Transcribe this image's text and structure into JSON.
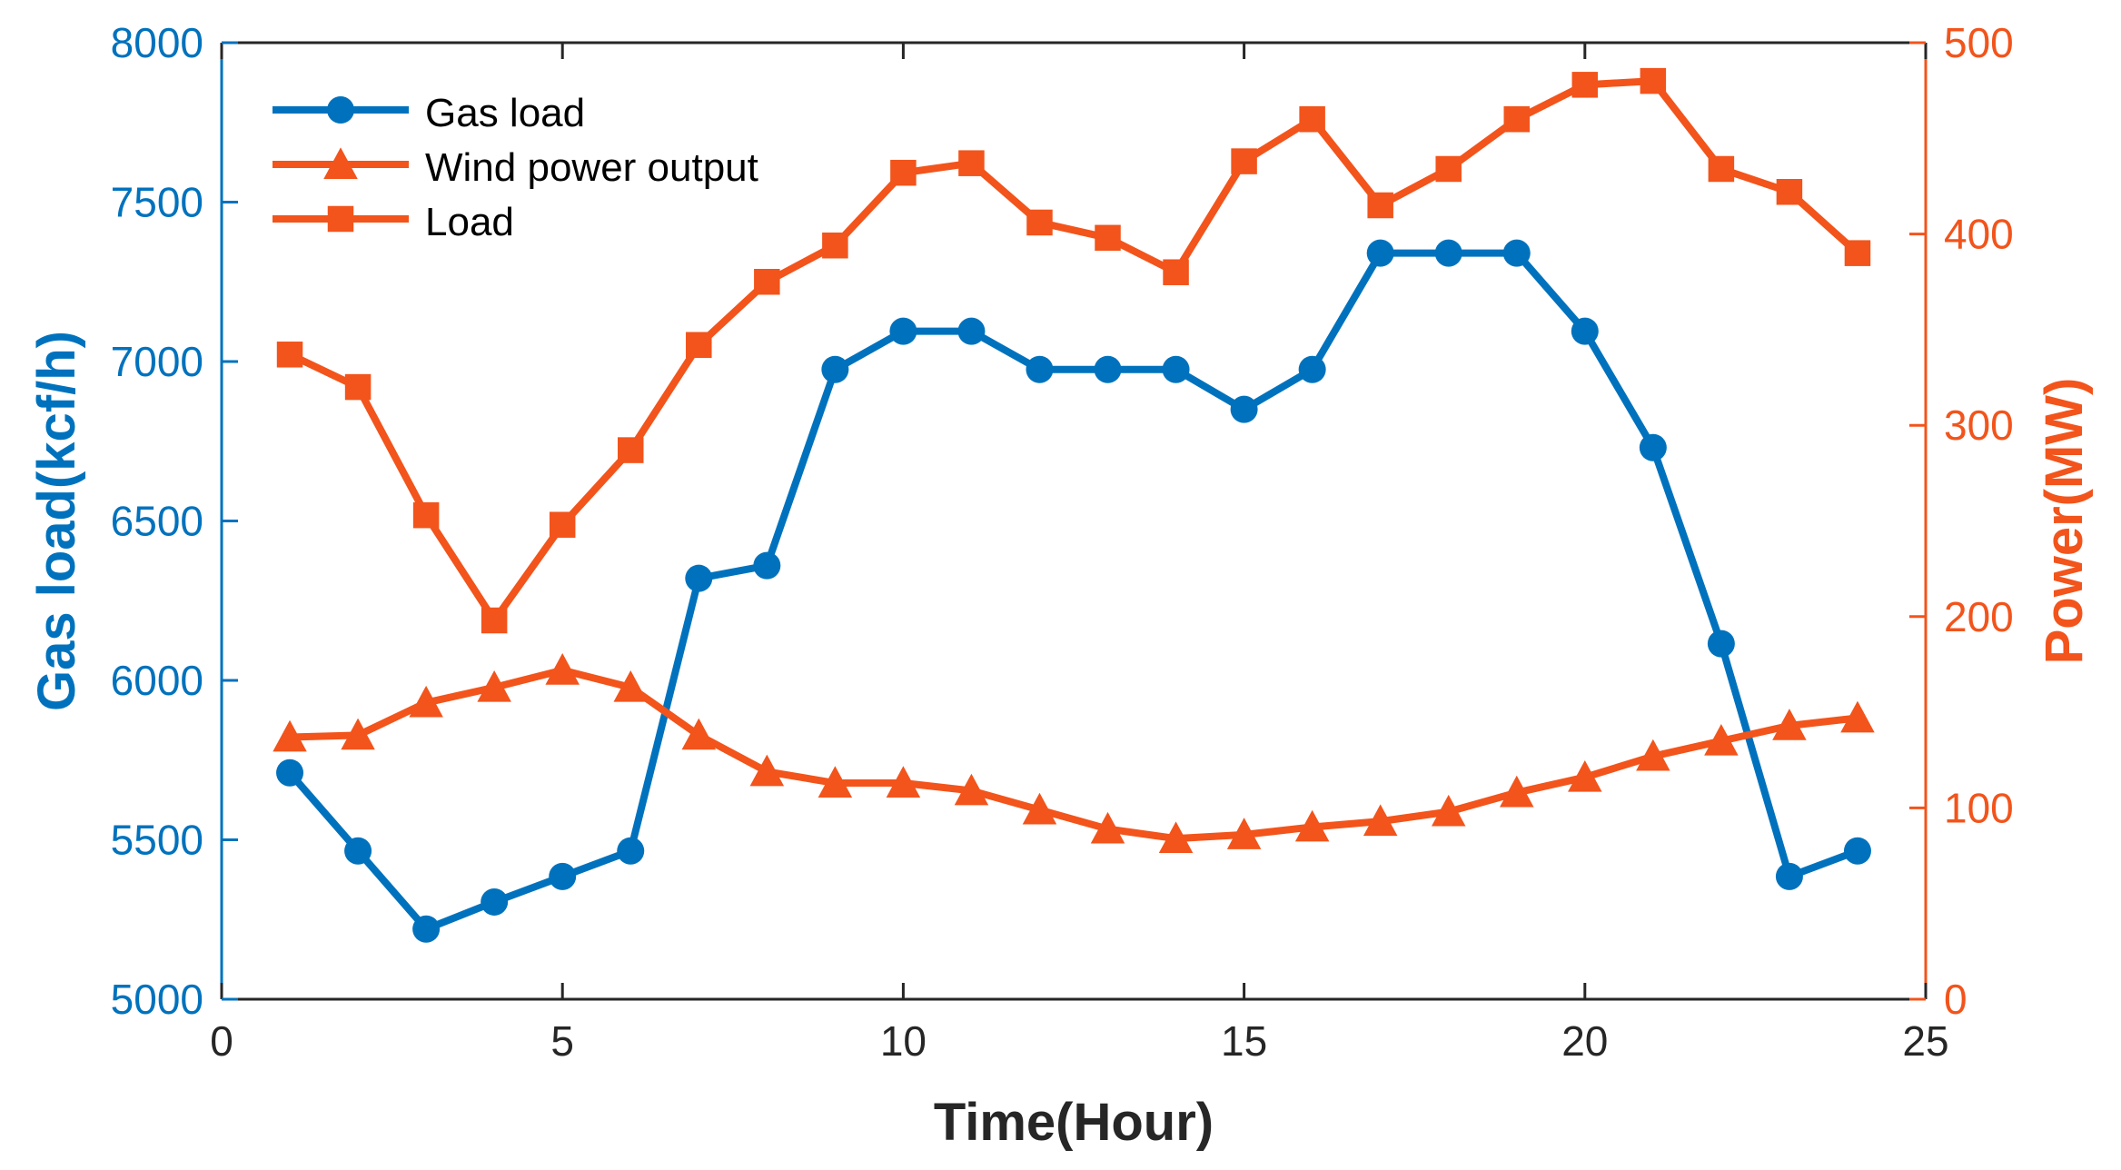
{
  "chart_data": {
    "type": "line",
    "xlabel": "Time(Hour)",
    "ylabel_left": "Gas load(kcf/h)",
    "ylabel_right": "Power(MW)",
    "xlim": [
      0,
      25
    ],
    "xticks": [
      "0",
      "5",
      "10",
      "15",
      "20",
      "25"
    ],
    "ylim_left": [
      5000,
      8000
    ],
    "yticks_left": [
      "5000",
      "5500",
      "6000",
      "6500",
      "7000",
      "7500",
      "8000"
    ],
    "ylim_right": [
      0,
      500
    ],
    "yticks_right": [
      "0",
      "100",
      "200",
      "300",
      "400",
      "500"
    ],
    "grid": false,
    "legend_position": "top-left",
    "x": [
      1,
      2,
      3,
      4,
      5,
      6,
      7,
      8,
      9,
      10,
      11,
      12,
      13,
      14,
      15,
      16,
      17,
      18,
      19,
      20,
      21,
      22,
      23,
      24
    ],
    "series": [
      {
        "name": "Gas load",
        "axis": "left",
        "marker": "circle",
        "color": "#0072BD",
        "values": [
          5710,
          5465,
          5220,
          5305,
          5385,
          5465,
          6320,
          6360,
          6975,
          7095,
          7095,
          6975,
          6975,
          6975,
          6850,
          6975,
          7340,
          7340,
          7340,
          7095,
          6730,
          6115,
          5385,
          5465
        ]
      },
      {
        "name": "Wind power output",
        "axis": "right",
        "marker": "triangle",
        "color": "#F2541B",
        "values": [
          137,
          138,
          155,
          163,
          172,
          163,
          138,
          119,
          113,
          113,
          109,
          99,
          89,
          84,
          86,
          90,
          93,
          98,
          108,
          116,
          127,
          135,
          143,
          147
        ]
      },
      {
        "name": "Load",
        "axis": "right",
        "marker": "square",
        "color": "#F2541B",
        "values": [
          337,
          320,
          253,
          198,
          248,
          287,
          342,
          375,
          394,
          432,
          437,
          406,
          398,
          380,
          438,
          460,
          415,
          434,
          460,
          478,
          480,
          434,
          422,
          390
        ]
      }
    ],
    "colors": {
      "left_axis": "#0072BD",
      "right_axis": "#F2541B",
      "box": "#262626",
      "title": "#262626"
    }
  }
}
